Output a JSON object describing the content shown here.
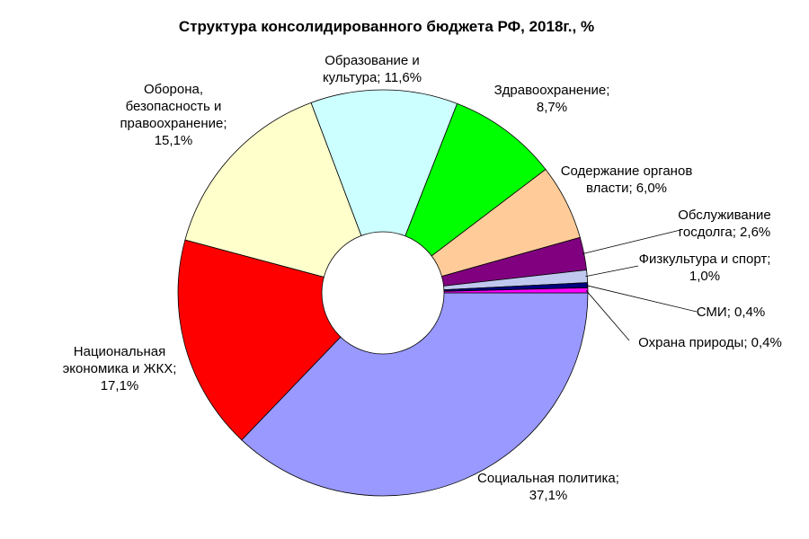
{
  "chart_data": {
    "type": "pie",
    "variant": "donut",
    "title": "Структура консолидированного бюджета РФ, 2018г., %",
    "slices": [
      {
        "label": "Социальная политика",
        "value": 37.1,
        "value_text": "37,1%",
        "color": "#9999FF"
      },
      {
        "label": "Национальная экономика и ЖКХ",
        "value": 17.1,
        "value_text": "17,1%",
        "color": "#FF0000"
      },
      {
        "label": "Оборона, безопасность и правоохранение",
        "value": 15.1,
        "value_text": "15,1%",
        "color": "#FFFFCC"
      },
      {
        "label": "Образование и культура",
        "value": 11.6,
        "value_text": "11,6%",
        "color": "#CCFFFF"
      },
      {
        "label": "Здравоохранение",
        "value": 8.7,
        "value_text": "8,7%",
        "color": "#00FF00"
      },
      {
        "label": "Содержание органов власти",
        "value": 6.0,
        "value_text": "6,0%",
        "color": "#FFCC99"
      },
      {
        "label": "Обслуживание госдолга",
        "value": 2.6,
        "value_text": "2,6%",
        "color": "#800080"
      },
      {
        "label": "Физкультура и спорт",
        "value": 1.0,
        "value_text": "1,0%",
        "color": "#C0C8F0"
      },
      {
        "label": "СМИ",
        "value": 0.4,
        "value_text": "0,4%",
        "color": "#000080"
      },
      {
        "label": "Охрана природы",
        "value": 0.4,
        "value_text": "0,4%",
        "color": "#FF00FF"
      }
    ],
    "data_labels": [
      [
        "Социальная политика;",
        "37,1%"
      ],
      [
        "Национальная",
        "экономика и ЖКХ;",
        "17,1%"
      ],
      [
        "Оборона,",
        "безопасность и",
        "правоохранение;",
        "15,1%"
      ],
      [
        "Образование и",
        "культура; 11,6%"
      ],
      [
        "Здравоохранение;",
        "8,7%"
      ],
      [
        "Содержание органов",
        "власти; 6,0%"
      ],
      [
        "Обслуживание",
        "госдолга; 2,6%"
      ],
      [
        "Физкультура и спорт;",
        "1,0%"
      ],
      [
        "СМИ; 0,4%"
      ],
      [
        "Охрана природы; 0,4%"
      ]
    ],
    "legend": "none"
  }
}
